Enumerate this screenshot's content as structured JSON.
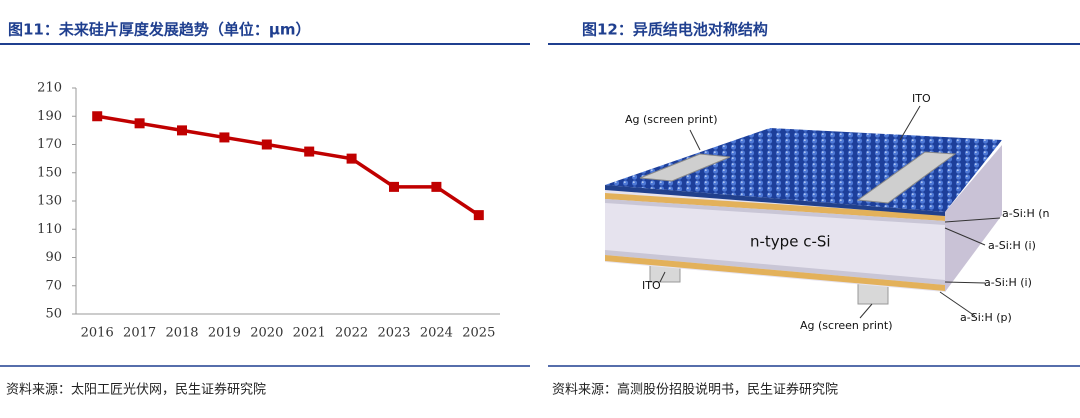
{
  "chart_data": {
    "type": "line",
    "title": "图11：未来硅片厚度发展趋势（单位：μm）",
    "categories": [
      "2016",
      "2017",
      "2018",
      "2019",
      "2020",
      "2021",
      "2022",
      "2023",
      "2024",
      "2025"
    ],
    "values": [
      190,
      185,
      180,
      175,
      170,
      165,
      160,
      140,
      140,
      120
    ],
    "color": "#c00000",
    "ylim": [
      50,
      210
    ],
    "yticks": [
      50,
      70,
      90,
      110,
      130,
      150,
      170,
      190,
      210
    ],
    "grid": false,
    "source": "资料来源：太阳工匠光伏网，民生证券研究院"
  },
  "figure": {
    "title": "图12：异质结电池对称结构",
    "labels": {
      "ag_top": "Ag (screen print)",
      "ito_top": "ITO",
      "asi_n": "a-Si:H (n",
      "asi_i_top": "a-Si:H (i)",
      "core": "n-type c-Si",
      "ito_bottom": "ITO",
      "asi_i_bottom": "a-Si:H (i)",
      "asi_p": "a-Si:H (p)",
      "ag_bottom": "Ag (screen print)"
    },
    "source": "资料来源：高测股份招股说明书，民生证券研究院"
  }
}
